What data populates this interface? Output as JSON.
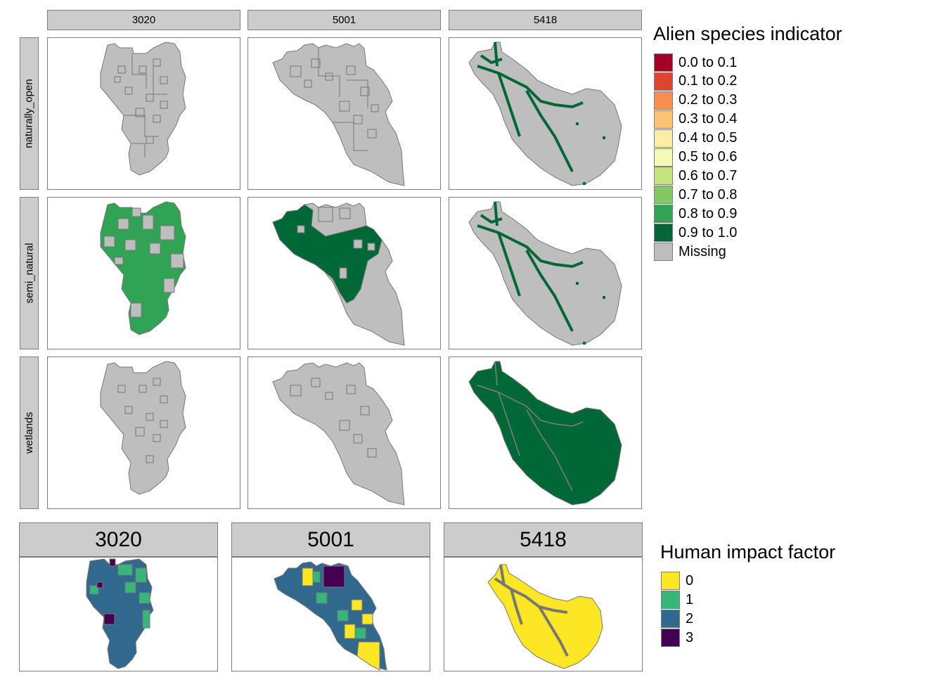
{
  "top_grid": {
    "columns": [
      "3020",
      "5001",
      "5418"
    ],
    "rows": [
      "naturally_open",
      "semi_natural",
      "wetlands"
    ],
    "cells": [
      [
        {
          "fill": "#bebebe",
          "cells": "none"
        },
        {
          "fill": "#bebebe",
          "cells": "none"
        },
        {
          "fill": "#bebebe",
          "cells": "#006837"
        }
      ],
      [
        {
          "fill": "#31a354",
          "cells": "partial-grey"
        },
        {
          "fill": "#006837",
          "cells": "partial-grey"
        },
        {
          "fill": "#bebebe",
          "cells": "#006837"
        }
      ],
      [
        {
          "fill": "#bebebe",
          "cells": "none"
        },
        {
          "fill": "#bebebe",
          "cells": "none"
        },
        {
          "fill": "#006837",
          "cells": "grey"
        }
      ]
    ]
  },
  "legend_alien": {
    "title": "Alien species indicator",
    "items": [
      {
        "label": "0.0 to 0.1",
        "color": "#a50026"
      },
      {
        "label": "0.1 to 0.2",
        "color": "#e0442f"
      },
      {
        "label": "0.2 to 0.3",
        "color": "#f98e52"
      },
      {
        "label": "0.3 to 0.4",
        "color": "#fdc373"
      },
      {
        "label": "0.4 to 0.5",
        "color": "#feeda2"
      },
      {
        "label": "0.5 to 0.6",
        "color": "#f3fab5"
      },
      {
        "label": "0.6 to 0.7",
        "color": "#c4e57d"
      },
      {
        "label": "0.7 to 0.8",
        "color": "#84c865"
      },
      {
        "label": "0.8 to 0.9",
        "color": "#31a354"
      },
      {
        "label": "0.9 to 1.0",
        "color": "#006837"
      },
      {
        "label": "Missing",
        "color": "#bebebe"
      }
    ]
  },
  "bottom_row": {
    "panels": [
      "3020",
      "5001",
      "5418"
    ]
  },
  "legend_human": {
    "title": "Human impact factor",
    "items": [
      {
        "label": "0",
        "color": "#fde725"
      },
      {
        "label": "1",
        "color": "#35b779"
      },
      {
        "label": "2",
        "color": "#31688e"
      },
      {
        "label": "3",
        "color": "#440154"
      }
    ]
  }
}
